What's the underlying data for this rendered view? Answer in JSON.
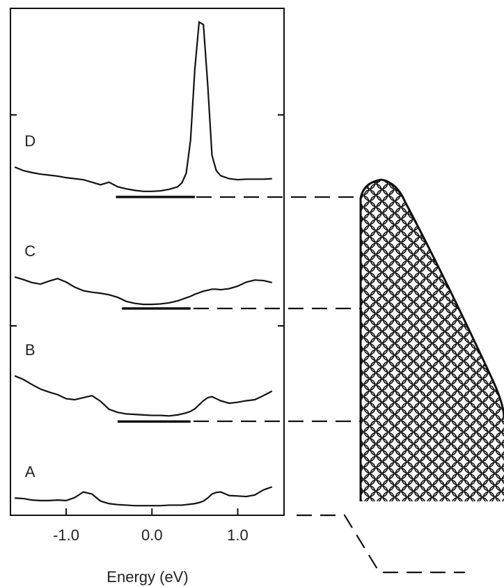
{
  "chart_data": {
    "type": "line",
    "x_label": "Energy (eV)",
    "x": [
      -1.6,
      -1.5,
      -1.4,
      -1.3,
      -1.2,
      -1.1,
      -1.0,
      -0.9,
      -0.8,
      -0.7,
      -0.6,
      -0.5,
      -0.4,
      -0.3,
      -0.2,
      -0.1,
      0,
      0.1,
      0.2,
      0.3,
      0.35,
      0.4,
      0.45,
      0.5,
      0.55,
      0.6,
      0.65,
      0.7,
      0.75,
      0.8,
      0.9,
      1.0,
      1.1,
      1.2,
      1.3,
      1.4
    ],
    "xlim": [
      -1.65,
      1.54
    ],
    "xticks": [
      {
        "value": -1,
        "label": "-1.0"
      },
      {
        "value": 0,
        "label": "0.0"
      },
      {
        "value": 1,
        "label": "1.0"
      }
    ],
    "ylim": [
      0,
      100
    ],
    "series": [
      {
        "name": "A",
        "color": "#111111",
        "values": [
          3.4,
          3.3,
          3.0,
          2.9,
          2.9,
          3.0,
          2.9,
          3.5,
          4.6,
          4.2,
          2.8,
          2.3,
          2.1,
          2.0,
          1.9,
          1.9,
          1.9,
          1.9,
          2.0,
          2.0,
          2.0,
          2.1,
          2.2,
          2.3,
          2.5,
          2.8,
          3.4,
          4.2,
          4.5,
          4.6,
          3.9,
          3.8,
          3.7,
          4.0,
          5.0,
          5.6
        ]
      },
      {
        "name": "B",
        "color": "#111111",
        "values": [
          27.5,
          26.8,
          25.8,
          24.9,
          24.3,
          23.8,
          23.0,
          22.8,
          23.2,
          23.6,
          22.5,
          20.9,
          20.3,
          20.0,
          19.9,
          19.8,
          19.7,
          19.7,
          19.6,
          19.8,
          20.0,
          20.2,
          20.5,
          21.0,
          21.8,
          22.6,
          23.2,
          23.4,
          23.0,
          22.6,
          22.1,
          22.3,
          22.6,
          22.8,
          23.6,
          24.5
        ]
      },
      {
        "name": "C",
        "color": "#111111",
        "values": [
          47.0,
          46.5,
          45.9,
          45.6,
          46.2,
          46.7,
          46.0,
          45.0,
          44.3,
          44.0,
          43.8,
          43.5,
          43.0,
          42.2,
          41.8,
          41.6,
          41.6,
          41.7,
          41.9,
          42.3,
          42.6,
          42.9,
          43.2,
          43.6,
          43.9,
          44.2,
          44.4,
          44.6,
          44.6,
          44.5,
          44.7,
          45.2,
          46.0,
          46.4,
          46.3,
          45.9
        ]
      },
      {
        "name": "D",
        "color": "#111111",
        "values": [
          68.7,
          68.0,
          67.6,
          67.3,
          67.1,
          66.9,
          66.6,
          66.4,
          66.2,
          65.7,
          65.2,
          65.7,
          64.8,
          64.4,
          64.1,
          63.9,
          63.9,
          64.0,
          64.3,
          64.8,
          65.6,
          67.5,
          74.0,
          88.0,
          97.3,
          96.8,
          85.0,
          71.0,
          68.0,
          67.0,
          66.4,
          66.2,
          66.3,
          66.3,
          66.3,
          66.4
        ]
      }
    ],
    "reference_lines": [
      {
        "y": 18.5,
        "x": [
          -0.4,
          0.45
        ]
      },
      {
        "y": 40.8,
        "x": [
          -0.35,
          0.45
        ]
      },
      {
        "y": 62.8,
        "x": [
          -0.42,
          0.5
        ]
      }
    ]
  }
}
